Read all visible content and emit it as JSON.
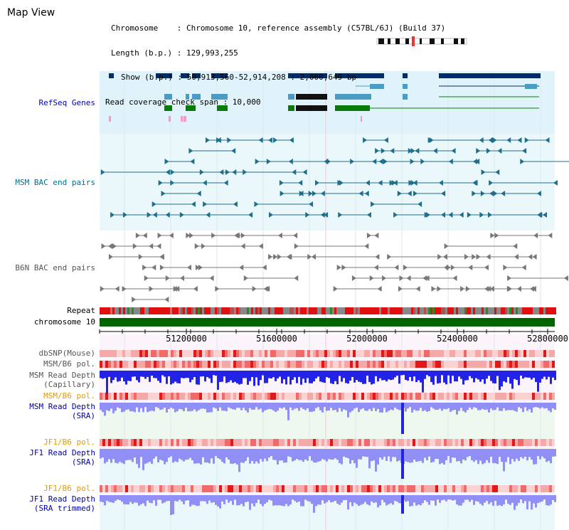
{
  "map_title": "Map View",
  "info": {
    "row_chrom": "Chromosome    : Chromosome 10, reference assembly (C57BL/6J) (Build 37)",
    "row_length": "Length (b.p.) : 129,993,255",
    "row_show": "Show (b.p.) : 50,913,560-52,914,208 : 2,000,649 bp",
    "row_span": "Read coverage check span : 10,000"
  },
  "tracks": {
    "refseq": "RefSeq Genes",
    "msm_bac": "MSM BAC end pairs",
    "b6n_bac": "B6N BAC end pairs",
    "repeat": "Repeat",
    "chromosome": "chromosome 10",
    "dbsnp": "dbSNP(Mouse)",
    "msm_b6_pol": "MSM/B6 pol.",
    "msm_read_depth_cap_1": "MSM Read Depth",
    "msm_read_depth_cap_2": "(Capillary)",
    "msm_b6_pol_2": "MSM/B6 pol.",
    "msm_read_depth_sra_1": "MSM Read Depth",
    "msm_read_depth_sra_2": "(SRA)",
    "jf1_b6_pol": "JF1/B6 pol.",
    "jf1_read_depth_1": "JF1 Read Depth",
    "jf1_read_depth_2": "(SRA)",
    "jf1_b6_pol_2": "JF1/B6 pol.",
    "jf1_trim_1": "JF1 Read Depth",
    "jf1_trim_2": "(SRA trimmed)"
  },
  "axis": {
    "ticks": [
      "51200000",
      "51600000",
      "52000000",
      "52400000",
      "52800000"
    ]
  },
  "colors": {
    "refseq_bg": "#e0f3fa",
    "msm_bac_bg": "#eaf8fb",
    "label_black": "#000000",
    "label_teal": "#006f8f",
    "label_gray": "#555555",
    "label_orange": "#e69a00",
    "label_blue": "#0000aa",
    "gene_navy": "#002d6b",
    "gene_steel": "#4a9cc4",
    "gene_green": "#0a7a0a",
    "bac_teal": "#1f6f8b",
    "bac_gray": "#777777",
    "chrom_green": "#006400",
    "depth_blue": "#2323e8",
    "depth_light_blue": "#8f8ff5"
  }
}
